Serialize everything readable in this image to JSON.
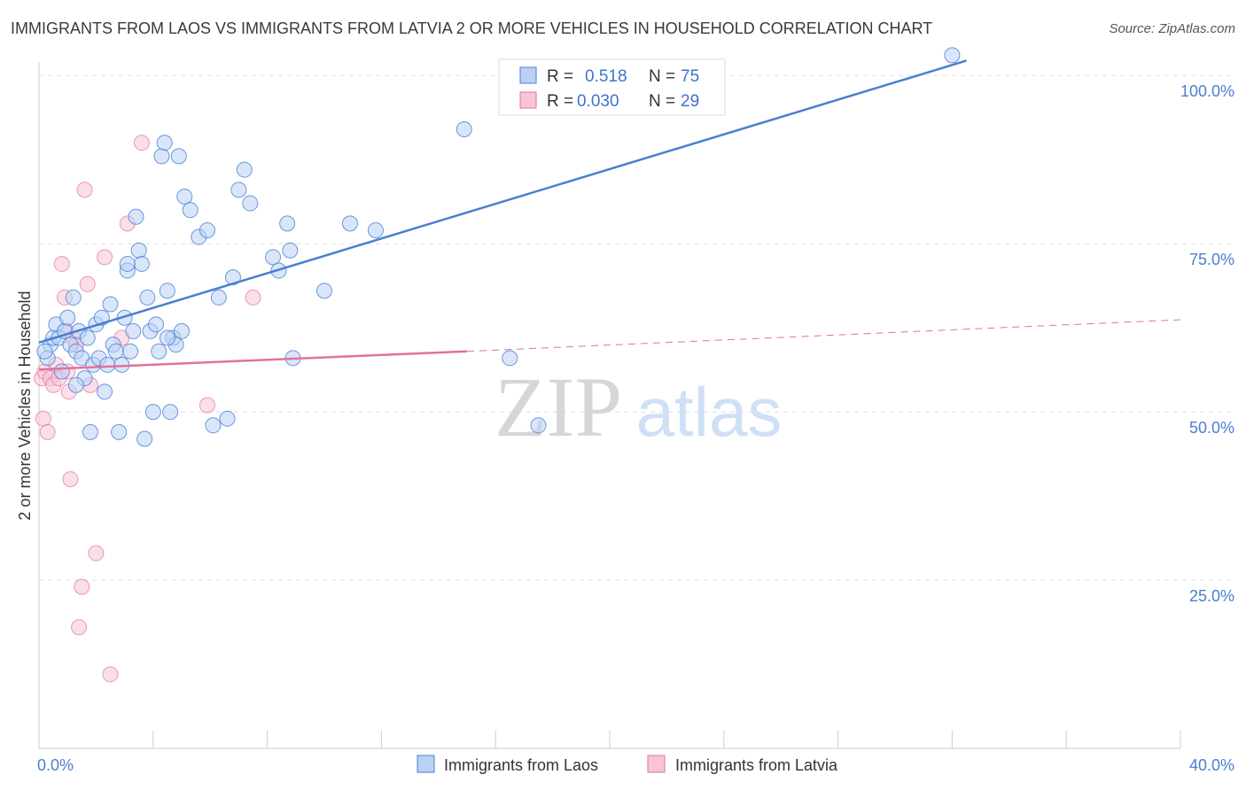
{
  "title": "IMMIGRANTS FROM LAOS VS IMMIGRANTS FROM LATVIA 2 OR MORE VEHICLES IN HOUSEHOLD CORRELATION CHART",
  "source": "Source: ZipAtlas.com",
  "watermark": {
    "zip": "ZIP",
    "atlas": "atlas"
  },
  "colors": {
    "blue": "#4a7fd1",
    "pink": "#e0729b",
    "blue_fill": "#b9d1f5",
    "pink_fill": "#f7c5d6",
    "grid": "#dddddd"
  },
  "chart_data": {
    "type": "scatter",
    "xlabel": "",
    "ylabel": "2 or more Vehicles in Household",
    "xlim": [
      0,
      40
    ],
    "ylim": [
      0,
      102
    ],
    "x_tick_labels": [
      {
        "value": 0,
        "label": "0.0%"
      },
      {
        "value": 40,
        "label": "40.0%"
      }
    ],
    "y_tick_labels": [
      {
        "value": 25,
        "label": "25.0%"
      },
      {
        "value": 50,
        "label": "50.0%"
      },
      {
        "value": 75,
        "label": "75.0%"
      },
      {
        "value": 100,
        "label": "100.0%"
      }
    ],
    "legend": [
      {
        "name": "Immigrants from Laos",
        "r_label": "R =",
        "r": "0.518",
        "n_label": "N =",
        "n": "75"
      },
      {
        "name": "Immigrants from Latvia",
        "r_label": "R =",
        "r": "0.030",
        "n_label": "N =",
        "n": "29"
      }
    ],
    "series": [
      {
        "name": "Immigrants from Laos",
        "color": "#4a7fd1",
        "trend": {
          "x0": 0.0,
          "y0": 60.3,
          "x1": 32.5,
          "y1": 102.2
        },
        "points": [
          [
            0.3,
            58
          ],
          [
            0.4,
            60
          ],
          [
            0.5,
            61
          ],
          [
            0.6,
            63
          ],
          [
            0.7,
            61
          ],
          [
            0.8,
            56
          ],
          [
            0.9,
            62
          ],
          [
            1.0,
            64
          ],
          [
            1.1,
            60
          ],
          [
            1.2,
            67
          ],
          [
            1.3,
            59
          ],
          [
            1.4,
            62
          ],
          [
            1.5,
            58
          ],
          [
            1.6,
            55
          ],
          [
            1.7,
            61
          ],
          [
            1.8,
            47
          ],
          [
            1.9,
            57
          ],
          [
            2.0,
            63
          ],
          [
            2.1,
            58
          ],
          [
            2.2,
            64
          ],
          [
            2.3,
            53
          ],
          [
            2.4,
            57
          ],
          [
            2.5,
            66
          ],
          [
            2.6,
            60
          ],
          [
            2.7,
            59
          ],
          [
            2.8,
            47
          ],
          [
            2.9,
            57
          ],
          [
            3.0,
            64
          ],
          [
            3.1,
            71
          ],
          [
            3.2,
            59
          ],
          [
            3.3,
            62
          ],
          [
            3.4,
            79
          ],
          [
            3.5,
            74
          ],
          [
            3.6,
            72
          ],
          [
            3.7,
            46
          ],
          [
            3.8,
            67
          ],
          [
            3.9,
            62
          ],
          [
            4.0,
            50
          ],
          [
            4.1,
            63
          ],
          [
            4.2,
            59
          ],
          [
            4.3,
            88
          ],
          [
            4.4,
            90
          ],
          [
            4.5,
            68
          ],
          [
            4.6,
            50
          ],
          [
            4.7,
            61
          ],
          [
            4.8,
            60
          ],
          [
            4.9,
            88
          ],
          [
            5.0,
            62
          ],
          [
            5.1,
            82
          ],
          [
            5.3,
            80
          ],
          [
            5.6,
            76
          ],
          [
            5.9,
            77
          ],
          [
            6.1,
            48
          ],
          [
            6.3,
            67
          ],
          [
            6.6,
            49
          ],
          [
            6.8,
            70
          ],
          [
            7.0,
            83
          ],
          [
            7.2,
            86
          ],
          [
            7.4,
            81
          ],
          [
            8.2,
            73
          ],
          [
            8.4,
            71
          ],
          [
            8.7,
            78
          ],
          [
            8.8,
            74
          ],
          [
            8.9,
            58
          ],
          [
            10.0,
            68
          ],
          [
            10.9,
            78
          ],
          [
            11.8,
            77
          ],
          [
            14.9,
            92
          ],
          [
            16.5,
            58
          ],
          [
            17.5,
            48
          ],
          [
            0.2,
            59
          ],
          [
            1.3,
            54
          ],
          [
            3.1,
            72
          ],
          [
            4.5,
            61
          ],
          [
            32.0,
            103
          ]
        ]
      },
      {
        "name": "Immigrants from Latvia",
        "color": "#e0729b",
        "trend": {
          "x0": 0.0,
          "y0": 56.3,
          "x1": 15.0,
          "y1": 59.0
        },
        "dash": {
          "x0": 15.0,
          "y0": 59.0,
          "x1": 40.0,
          "y1": 63.7
        },
        "points": [
          [
            0.1,
            55
          ],
          [
            0.15,
            49
          ],
          [
            0.2,
            56
          ],
          [
            0.3,
            47
          ],
          [
            0.4,
            55
          ],
          [
            0.5,
            54
          ],
          [
            0.6,
            57
          ],
          [
            0.7,
            55
          ],
          [
            0.8,
            72
          ],
          [
            0.9,
            67
          ],
          [
            0.95,
            62
          ],
          [
            1.0,
            56
          ],
          [
            1.05,
            53
          ],
          [
            1.1,
            40
          ],
          [
            1.2,
            61
          ],
          [
            1.3,
            60
          ],
          [
            1.4,
            18
          ],
          [
            1.5,
            24
          ],
          [
            1.6,
            83
          ],
          [
            1.7,
            69
          ],
          [
            1.8,
            54
          ],
          [
            2.0,
            29
          ],
          [
            2.3,
            73
          ],
          [
            2.5,
            11
          ],
          [
            2.9,
            61
          ],
          [
            3.1,
            78
          ],
          [
            3.6,
            90
          ],
          [
            5.9,
            51
          ],
          [
            7.5,
            67
          ]
        ]
      }
    ]
  }
}
